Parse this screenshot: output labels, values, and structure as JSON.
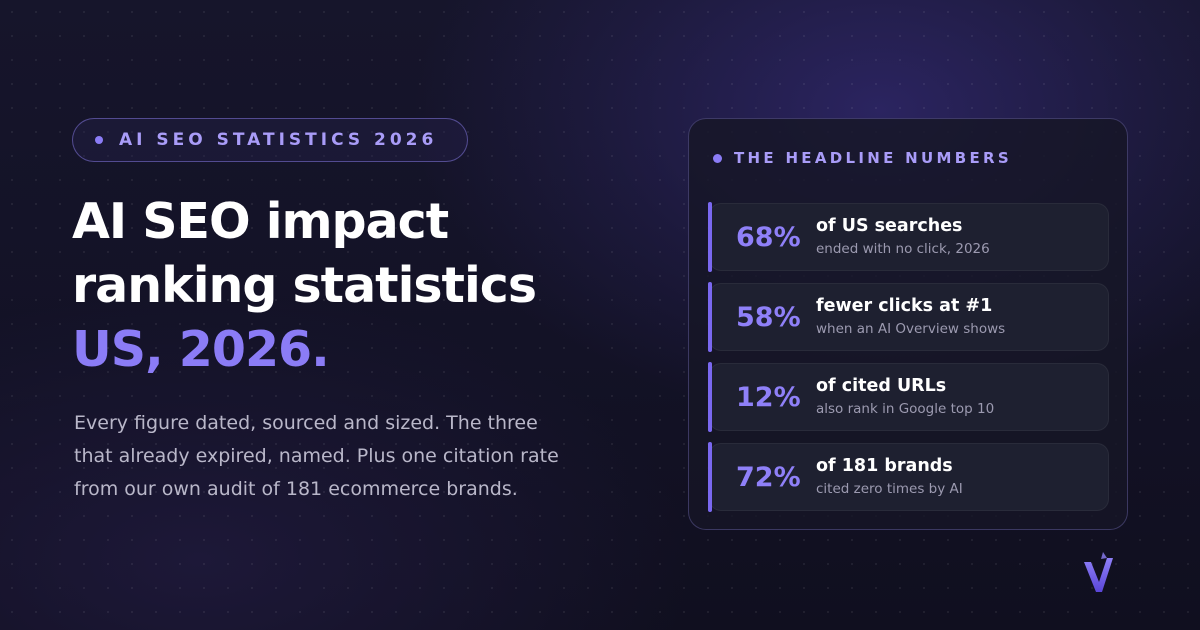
{
  "badge": {
    "text": "AI SEO STATISTICS 2026"
  },
  "hero": {
    "title_line1": "AI SEO impact",
    "title_line2": "ranking statistics",
    "title_accent": "US, 2026.",
    "description": "Every figure dated, sourced and sized. The three that already expired, named. Plus one citation rate from our own audit of 181 ecommerce brands."
  },
  "card": {
    "heading": "THE HEADLINE NUMBERS",
    "stats": [
      {
        "value": "68%",
        "label": "of US searches",
        "sub": "ended with no click, 2026"
      },
      {
        "value": "58%",
        "label": "fewer clicks at #1",
        "sub": "when an AI Overview shows"
      },
      {
        "value": "12%",
        "label": "of cited URLs",
        "sub": "also rank in Google top 10"
      },
      {
        "value": "72%",
        "label": "of 181 brands",
        "sub": "cited zero times by AI"
      }
    ]
  },
  "colors": {
    "accent": "#8b7cf6",
    "background": "#131226",
    "card": "#1e2030"
  },
  "icons": {
    "logo": "v-arrow-logo-icon"
  }
}
